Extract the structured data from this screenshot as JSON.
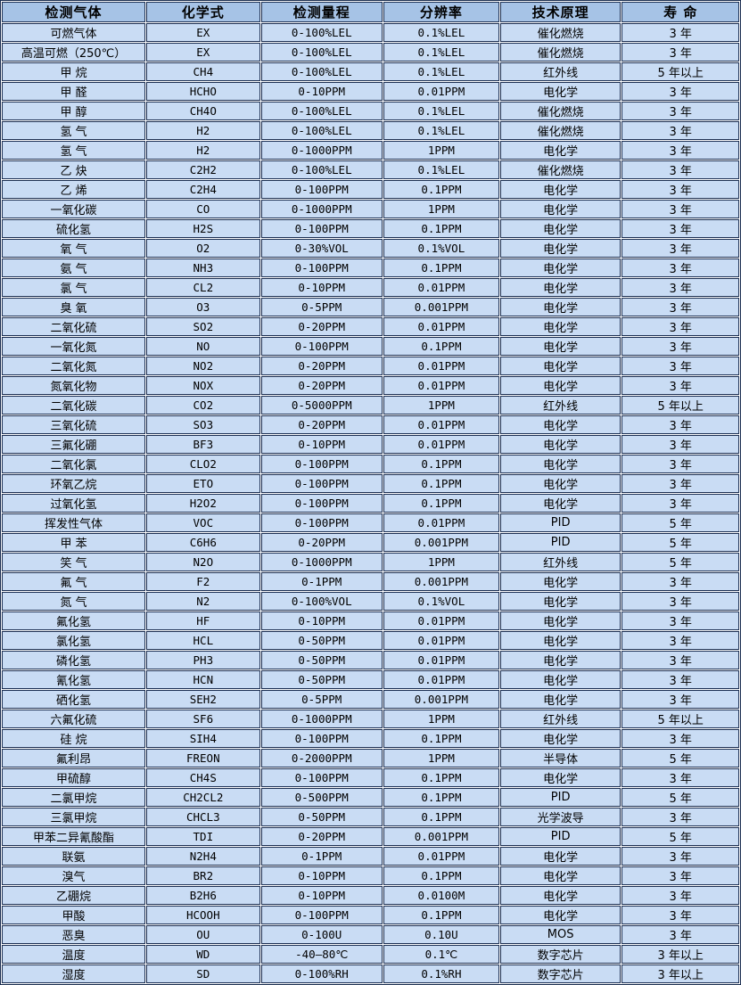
{
  "colors": {
    "header_bg": "#a6c3e6",
    "row_bg": "#c9dcf4",
    "border": "#1c2f52",
    "text": "#000000"
  },
  "table": {
    "columns": [
      {
        "key": "gas",
        "label": "检测气体"
      },
      {
        "key": "formula",
        "label": "化学式"
      },
      {
        "key": "range",
        "label": "检测量程"
      },
      {
        "key": "resolution",
        "label": "分辨率"
      },
      {
        "key": "principle",
        "label": "技术原理"
      },
      {
        "key": "life",
        "label": "寿 命"
      }
    ],
    "rows": [
      [
        "可燃气体",
        "EX",
        "0-100%LEL",
        "0.1%LEL",
        "催化燃烧",
        "3 年"
      ],
      [
        "高温可燃（250℃）",
        "EX",
        "0-100%LEL",
        "0.1%LEL",
        "催化燃烧",
        "3 年"
      ],
      [
        "甲 烷",
        "CH4",
        "0-100%LEL",
        "0.1%LEL",
        "红外线",
        "5 年以上"
      ],
      [
        "甲 醛",
        "HCHO",
        "0-10PPM",
        "0.01PPM",
        "电化学",
        "3 年"
      ],
      [
        "甲 醇",
        "CH4O",
        "0-100%LEL",
        "0.1%LEL",
        "催化燃烧",
        "3 年"
      ],
      [
        "氢 气",
        "H2",
        "0-100%LEL",
        "0.1%LEL",
        "催化燃烧",
        "3 年"
      ],
      [
        "氢 气",
        "H2",
        "0-1000PPM",
        "1PPM",
        "电化学",
        "3 年"
      ],
      [
        "乙 炔",
        "C2H2",
        "0-100%LEL",
        "0.1%LEL",
        "催化燃烧",
        "3 年"
      ],
      [
        "乙 烯",
        "C2H4",
        "0-100PPM",
        "0.1PPM",
        "电化学",
        "3 年"
      ],
      [
        "一氧化碳",
        "CO",
        "0-1000PPM",
        "1PPM",
        "电化学",
        "3 年"
      ],
      [
        "硫化氢",
        "H2S",
        "0-100PPM",
        "0.1PPM",
        "电化学",
        "3 年"
      ],
      [
        "氧 气",
        "O2",
        "0-30%VOL",
        "0.1%VOL",
        "电化学",
        "3 年"
      ],
      [
        "氨 气",
        "NH3",
        "0-100PPM",
        "0.1PPM",
        "电化学",
        "3 年"
      ],
      [
        "氯 气",
        "CL2",
        "0-10PPM",
        "0.01PPM",
        "电化学",
        "3 年"
      ],
      [
        "臭 氧",
        "O3",
        "0-5PPM",
        "0.001PPM",
        "电化学",
        "3 年"
      ],
      [
        "二氧化硫",
        "SO2",
        "0-20PPM",
        "0.01PPM",
        "电化学",
        "3 年"
      ],
      [
        "一氧化氮",
        "NO",
        "0-100PPM",
        "0.1PPM",
        "电化学",
        "3 年"
      ],
      [
        "二氧化氮",
        "NO2",
        "0-20PPM",
        "0.01PPM",
        "电化学",
        "3 年"
      ],
      [
        "氮氧化物",
        "NOX",
        "0-20PPM",
        "0.01PPM",
        "电化学",
        "3 年"
      ],
      [
        "二氧化碳",
        "CO2",
        "0-5000PPM",
        "1PPM",
        "红外线",
        "5 年以上"
      ],
      [
        "三氧化硫",
        "SO3",
        "0-20PPM",
        "0.01PPM",
        "电化学",
        "3 年"
      ],
      [
        "三氟化硼",
        "BF3",
        "0-10PPM",
        "0.01PPM",
        "电化学",
        "3 年"
      ],
      [
        "二氧化氯",
        "CLO2",
        "0-100PPM",
        "0.1PPM",
        "电化学",
        "3 年"
      ],
      [
        "环氧乙烷",
        "ETO",
        "0-100PPM",
        "0.1PPM",
        "电化学",
        "3 年"
      ],
      [
        "过氧化氢",
        "H2O2",
        "0-100PPM",
        "0.1PPM",
        "电化学",
        "3 年"
      ],
      [
        "挥发性气体",
        "VOC",
        "0-100PPM",
        "0.01PPM",
        "PID",
        "5 年"
      ],
      [
        "甲 苯",
        "C6H6",
        "0-20PPM",
        "0.001PPM",
        "PID",
        "5 年"
      ],
      [
        "笑 气",
        "N2O",
        "0-1000PPM",
        "1PPM",
        "红外线",
        "5 年"
      ],
      [
        "氟 气",
        "F2",
        "0-1PPM",
        "0.001PPM",
        "电化学",
        "3 年"
      ],
      [
        "氮 气",
        "N2",
        "0-100%VOL",
        "0.1%VOL",
        "电化学",
        "3 年"
      ],
      [
        "氟化氢",
        "HF",
        "0-10PPM",
        "0.01PPM",
        "电化学",
        "3 年"
      ],
      [
        "氯化氢",
        "HCL",
        "0-50PPM",
        "0.01PPM",
        "电化学",
        "3 年"
      ],
      [
        "磷化氢",
        "PH3",
        "0-50PPM",
        "0.01PPM",
        "电化学",
        "3 年"
      ],
      [
        "氰化氢",
        "HCN",
        "0-50PPM",
        "0.01PPM",
        "电化学",
        "3 年"
      ],
      [
        "硒化氢",
        "SEH2",
        "0-5PPM",
        "0.001PPM",
        "电化学",
        "3 年"
      ],
      [
        "六氟化硫",
        "SF6",
        "0-1000PPM",
        "1PPM",
        "红外线",
        "5 年以上"
      ],
      [
        "硅 烷",
        "SIH4",
        "0-100PPM",
        "0.1PPM",
        "电化学",
        "3 年"
      ],
      [
        "氟利昂",
        "FREON",
        "0-2000PPM",
        "1PPM",
        "半导体",
        "5 年"
      ],
      [
        "甲硫醇",
        "CH4S",
        "0-100PPM",
        "0.1PPM",
        "电化学",
        "3 年"
      ],
      [
        "二氯甲烷",
        "CH2CL2",
        "0-500PPM",
        "0.1PPM",
        "PID",
        "5 年"
      ],
      [
        "三氯甲烷",
        "CHCL3",
        "0-50PPM",
        "0.1PPM",
        "光学波导",
        "3 年"
      ],
      [
        "甲苯二异氰酸酯",
        "TDI",
        "0-20PPM",
        "0.001PPM",
        "PID",
        "5 年"
      ],
      [
        "联氨",
        "N2H4",
        "0-1PPM",
        "0.01PPM",
        "电化学",
        "3 年"
      ],
      [
        "溴气",
        "BR2",
        "0-10PPM",
        "0.1PPM",
        "电化学",
        "3 年"
      ],
      [
        "乙硼烷",
        "B2H6",
        "0-10PPM",
        "0.0100M",
        "电化学",
        "3 年"
      ],
      [
        "甲酸",
        "HCOOH",
        "0-100PPM",
        "0.1PPM",
        "电化学",
        "3 年"
      ],
      [
        "恶臭",
        "OU",
        "0-100U",
        "0.10U",
        "MOS",
        "3 年"
      ],
      [
        "温度",
        "WD",
        "-40—80℃",
        "0.1℃",
        "数字芯片",
        "3 年以上"
      ],
      [
        "湿度",
        "SD",
        "0-100%RH",
        "0.1%RH",
        "数字芯片",
        "3 年以上"
      ]
    ]
  }
}
